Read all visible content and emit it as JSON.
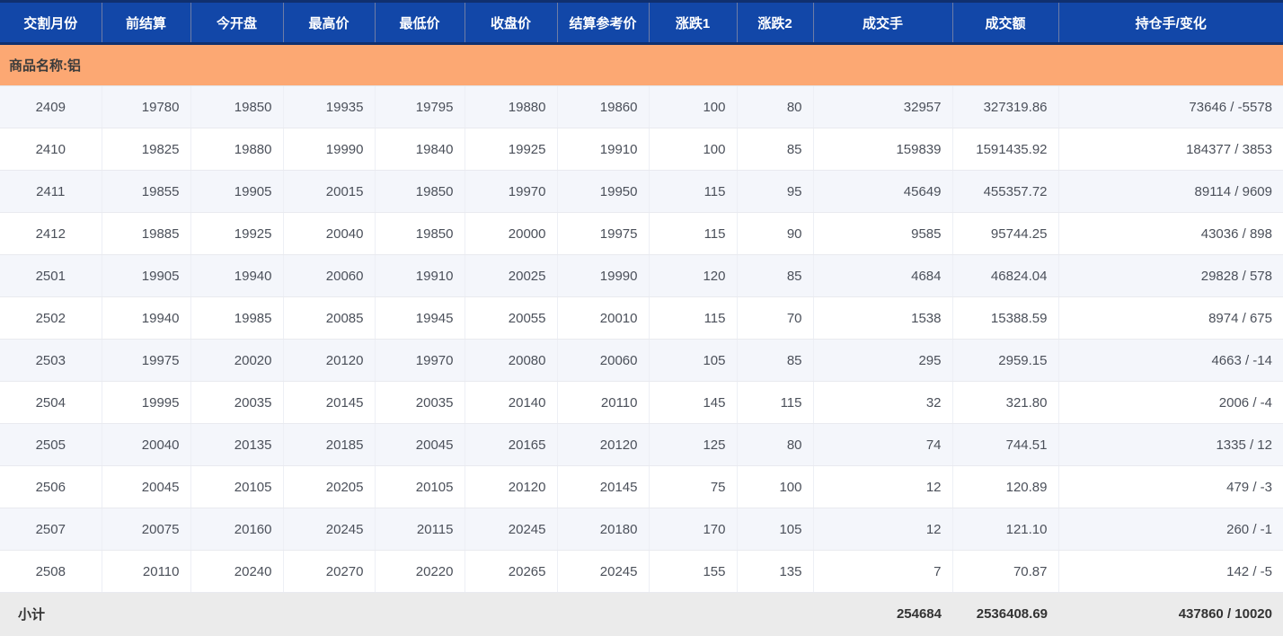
{
  "colors": {
    "header_bg": "#1247a8",
    "header_border": "#10306f",
    "header_separator": "#6d7ca6",
    "header_text": "#ffffff",
    "group_row_bg": "#fca873",
    "stripe_bg": "#f4f6fb",
    "subtotal_bg": "#ebebeb",
    "cell_text": "#4b505a"
  },
  "table": {
    "columns": [
      "交割月份",
      "前结算",
      "今开盘",
      "最高价",
      "最低价",
      "收盘价",
      "结算参考价",
      "涨跌1",
      "涨跌2",
      "成交手",
      "成交额",
      "持仓手/变化"
    ],
    "commodity_label": "商品名称:铝",
    "rows": [
      [
        "2409",
        "19780",
        "19850",
        "19935",
        "19795",
        "19880",
        "19860",
        "100",
        "80",
        "32957",
        "327319.86",
        "73646 / -5578"
      ],
      [
        "2410",
        "19825",
        "19880",
        "19990",
        "19840",
        "19925",
        "19910",
        "100",
        "85",
        "159839",
        "1591435.92",
        "184377 / 3853"
      ],
      [
        "2411",
        "19855",
        "19905",
        "20015",
        "19850",
        "19970",
        "19950",
        "115",
        "95",
        "45649",
        "455357.72",
        "89114 / 9609"
      ],
      [
        "2412",
        "19885",
        "19925",
        "20040",
        "19850",
        "20000",
        "19975",
        "115",
        "90",
        "9585",
        "95744.25",
        "43036 / 898"
      ],
      [
        "2501",
        "19905",
        "19940",
        "20060",
        "19910",
        "20025",
        "19990",
        "120",
        "85",
        "4684",
        "46824.04",
        "29828 / 578"
      ],
      [
        "2502",
        "19940",
        "19985",
        "20085",
        "19945",
        "20055",
        "20010",
        "115",
        "70",
        "1538",
        "15388.59",
        "8974 / 675"
      ],
      [
        "2503",
        "19975",
        "20020",
        "20120",
        "19970",
        "20080",
        "20060",
        "105",
        "85",
        "295",
        "2959.15",
        "4663 / -14"
      ],
      [
        "2504",
        "19995",
        "20035",
        "20145",
        "20035",
        "20140",
        "20110",
        "145",
        "115",
        "32",
        "321.80",
        "2006 / -4"
      ],
      [
        "2505",
        "20040",
        "20135",
        "20185",
        "20045",
        "20165",
        "20120",
        "125",
        "80",
        "74",
        "744.51",
        "1335 / 12"
      ],
      [
        "2506",
        "20045",
        "20105",
        "20205",
        "20105",
        "20120",
        "20145",
        "75",
        "100",
        "12",
        "120.89",
        "479 / -3"
      ],
      [
        "2507",
        "20075",
        "20160",
        "20245",
        "20115",
        "20245",
        "20180",
        "170",
        "105",
        "12",
        "121.10",
        "260 / -1"
      ],
      [
        "2508",
        "20110",
        "20240",
        "20270",
        "20220",
        "20265",
        "20245",
        "155",
        "135",
        "7",
        "70.87",
        "142 / -5"
      ]
    ],
    "subtotal": {
      "label": "小计",
      "volume_total": "254684",
      "turnover_total": "2536408.69",
      "open_interest_total": "437860 / 10020"
    }
  }
}
